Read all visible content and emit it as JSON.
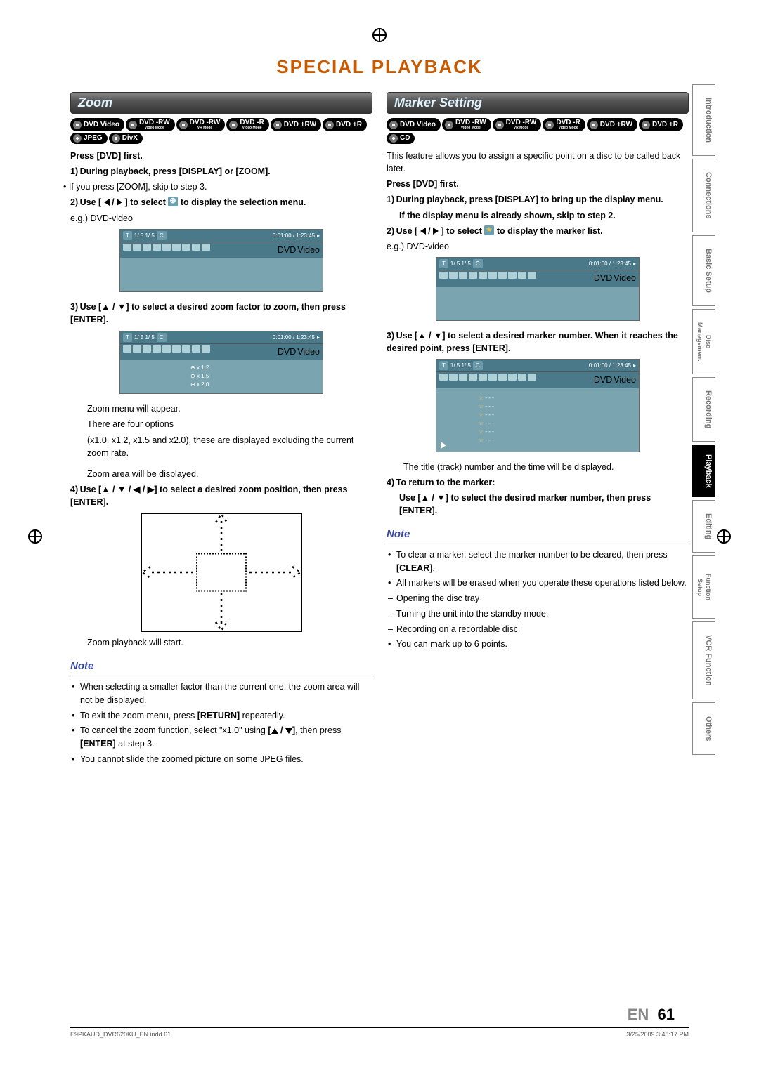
{
  "page_title": "SPECIAL PLAYBACK",
  "page_lang": "EN",
  "page_number": "61",
  "footer_left": "E9PKAUD_DVR620KU_EN.indd   61",
  "footer_right": "3/25/2009   3:48:17 PM",
  "tabs": [
    "Introduction",
    "Connections",
    "Basic Setup",
    "Disc Management",
    "Recording",
    "Playback",
    "Editing",
    "Function Setup",
    "VCR Function",
    "Others"
  ],
  "active_tab_index": 5,
  "zoom": {
    "title": "Zoom",
    "badges": [
      "DVD Video",
      "DVD -RW Video Mode",
      "DVD -RW VR Mode",
      "DVD -R Video Mode",
      "DVD +RW",
      "DVD +R",
      "JPEG",
      "DivX"
    ],
    "press_first": "Press [DVD] first.",
    "step1": "1) During playback, press [DISPLAY] or [ZOOM].",
    "step1_b": "If you press [ZOOM], skip to step 3.",
    "step2": "2) Use [ ◀ / ▶ ] to select        to display the selection menu.",
    "eg": "e.g.) DVD-video",
    "step3": "3) Use [▲ / ▼] to select a desired zoom factor to zoom, then press [ENTER].",
    "zoom_appear": "Zoom menu will appear.",
    "four_options": "There are four options",
    "options_text": "(x1.0, x1.2, x1.5 and x2.0), these are displayed excluding the current zoom rate.",
    "area_displayed": "Zoom area will be displayed.",
    "step4": "4) Use [▲ / ▼ / ◀ / ▶] to select a desired zoom position, then press [ENTER].",
    "playback_start": "Zoom playback will start.",
    "note_label": "Note",
    "notes": [
      "When selecting a smaller factor than the current one, the zoom area will not be displayed.",
      "To exit the zoom menu, press [RETURN] repeatedly.",
      "To cancel the zoom function, select \"x1.0\" using [▲ / ▼], then press [ENTER] at step 3.",
      "You cannot slide the zoomed picture on some JPEG files."
    ],
    "osd_time": "0:01:00 / 1:23:45",
    "osd_counter": "1/   5        1/   5",
    "osd_tags": [
      "DVD",
      "Video"
    ],
    "zoom_levels": [
      "x 1.2",
      "x 1.5",
      "x 2.0"
    ]
  },
  "marker": {
    "title": "Marker Setting",
    "badges": [
      "DVD Video",
      "DVD -RW Video Mode",
      "DVD -RW VR Mode",
      "DVD -R Video Mode",
      "DVD +RW",
      "DVD +R",
      "CD"
    ],
    "intro": "This feature allows you to assign a specific point on a disc to be called back later.",
    "press_first": "Press [DVD] first.",
    "step1a": "1) During playback, press [DISPLAY] to bring up the display menu.",
    "step1b": "If the display menu is already shown, skip to step 2.",
    "step2": "2) Use [ ◀ / ▶ ] to select        to display the marker list.",
    "eg": "e.g.) DVD-video",
    "step3": "3) Use [▲ / ▼] to select a desired marker number. When it reaches the desired point, press [ENTER].",
    "title_track": "The title (track) number and the time will be displayed.",
    "step4a": "4) To return to the marker:",
    "step4b": "Use [▲ / ▼] to select the desired marker number, then press [ENTER].",
    "note_label": "Note",
    "notes_dot": [
      "To clear a marker, select the marker number to be cleared, then press [CLEAR].",
      "All markers will be erased when you operate these operations listed below."
    ],
    "notes_dash": [
      "Opening the disc tray",
      "Turning the unit into the standby mode.",
      "Recording on a recordable disc"
    ],
    "notes_dot2": [
      "You can mark up to 6 points."
    ],
    "osd_time": "0:01:00 / 1:23:45",
    "osd_counter": "1/   5        1/   5",
    "osd_tags": [
      "DVD",
      "Video"
    ],
    "marker_dashes": "- - -"
  }
}
